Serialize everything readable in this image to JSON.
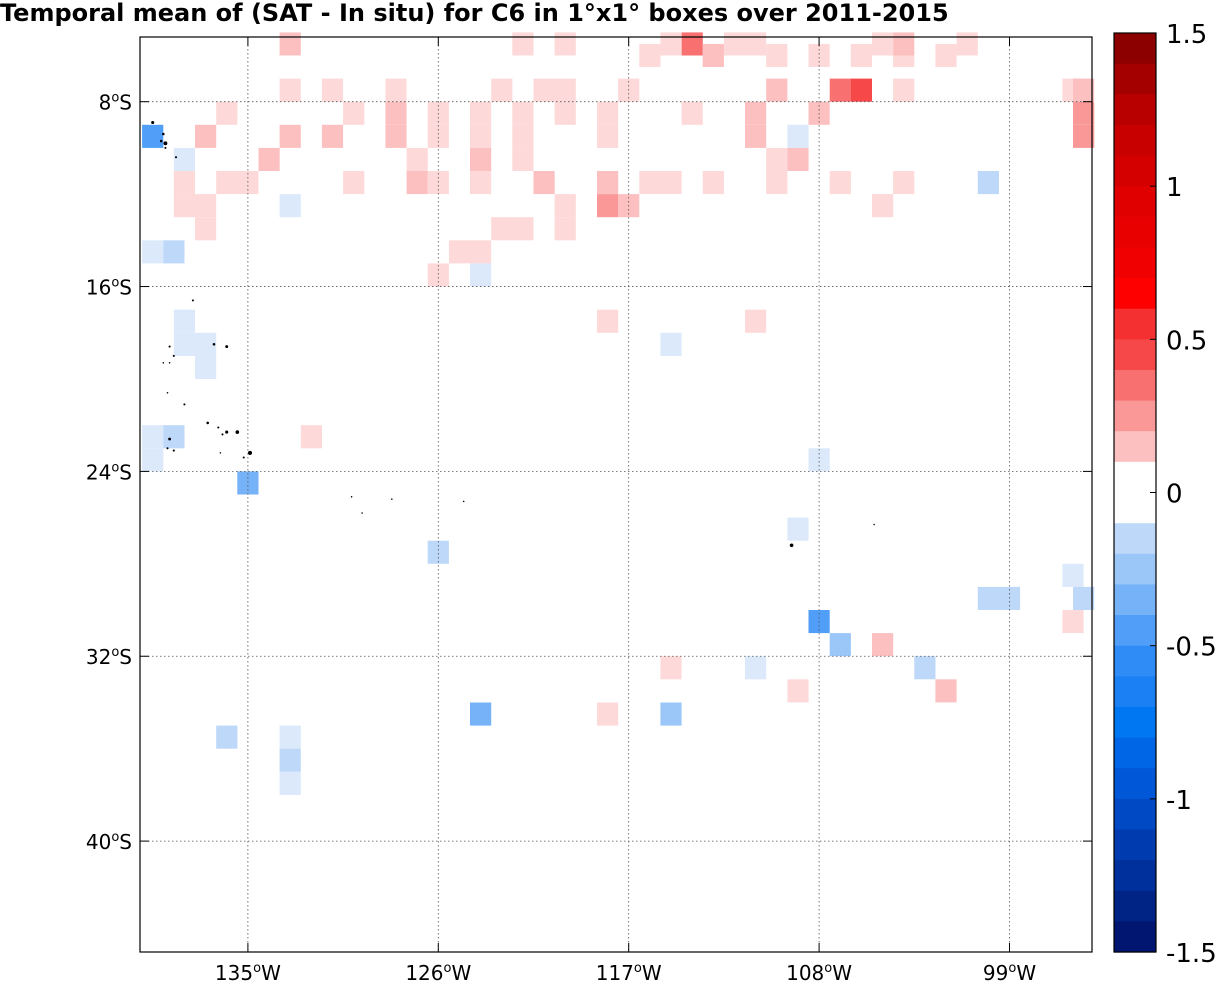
{
  "title": "Temporal mean of (SAT - In situ) for C6 in 1°x1° boxes over 2011-2015",
  "map": {
    "lon_range": [
      -140.1,
      -95.1
    ],
    "lat_range": [
      -44.8,
      -5.2
    ],
    "x_ticks": [
      {
        "lon": -135,
        "label": "135°W"
      },
      {
        "lon": -126,
        "label": "126°W"
      },
      {
        "lon": -117,
        "label": "117°W"
      },
      {
        "lon": -108,
        "label": "108°W"
      },
      {
        "lon": -99,
        "label": "99°W"
      }
    ],
    "y_ticks": [
      {
        "lat": -8,
        "label": "8°S"
      },
      {
        "lat": -16,
        "label": "16°S"
      },
      {
        "lat": -24,
        "label": "24°S"
      },
      {
        "lat": -32,
        "label": "32°S"
      },
      {
        "lat": -40,
        "label": "40°S"
      }
    ],
    "grid": "dotted",
    "land_color": "#000000"
  },
  "colorbar": {
    "range": [
      -1.5,
      1.5
    ],
    "ticks": [
      {
        "value": 1.5,
        "label": "1.5"
      },
      {
        "value": 1,
        "label": "1"
      },
      {
        "value": 0.5,
        "label": "0.5"
      },
      {
        "value": 0,
        "label": "0"
      },
      {
        "value": -0.5,
        "label": "-0.5"
      },
      {
        "value": -1,
        "label": "-1"
      },
      {
        "value": -1.5,
        "label": "-1.5"
      }
    ],
    "levels": 30,
    "colors_positive": [
      "#ffffff",
      "#fdd9d9",
      "#fcc0c0",
      "#fa9898",
      "#f87070",
      "#f64848",
      "#f43030",
      "#ff0000",
      "#f00000",
      "#e80000",
      "#e00000",
      "#d40000",
      "#c80000",
      "#b80000",
      "#a40000",
      "#8c0000"
    ],
    "colors_negative": [
      "#ffffff",
      "#dbe9fb",
      "#bdd8f9",
      "#9bc7f8",
      "#76b2f7",
      "#509ef7",
      "#2f8cf6",
      "#1a80f4",
      "#0077f2",
      "#0066e6",
      "#0058d8",
      "#0049c4",
      "#003cb0",
      "#00309c",
      "#002486",
      "#001670"
    ]
  },
  "chart_data": {
    "type": "heatmap",
    "title": "Temporal mean of (SAT - In situ) for C6 in 1°x1° boxes over 2011-2015",
    "xlabel": "",
    "ylabel": "",
    "x_unit": "longitude (deg E, negative = W)",
    "y_unit": "latitude (deg N, negative = S)",
    "color_range": [
      -1.5,
      1.5
    ],
    "cells": [
      [
        -133,
        -5.5,
        0.25
      ],
      [
        -114,
        -5.5,
        0.45
      ],
      [
        -112,
        -5.5,
        0.15
      ],
      [
        -111,
        -5.5,
        0.15
      ],
      [
        -115,
        -5.5,
        0.1
      ],
      [
        -116,
        -6,
        0.1
      ],
      [
        -113,
        -6,
        0.25
      ],
      [
        -108,
        -6,
        0.1
      ],
      [
        -110,
        -6,
        0.1
      ],
      [
        -106,
        -6,
        0.1
      ],
      [
        -104,
        -6,
        0.1
      ],
      [
        -102,
        -6,
        0.1
      ],
      [
        -122,
        -5.5,
        0.1
      ],
      [
        -120,
        -5.5,
        0.1
      ],
      [
        -101,
        -5.5,
        0.15
      ],
      [
        -104,
        -5.5,
        0.2
      ],
      [
        -105,
        -5.5,
        0.1
      ],
      [
        -133,
        -7.5,
        0.15
      ],
      [
        -131,
        -7.5,
        0.15
      ],
      [
        -128,
        -7.5,
        0.15
      ],
      [
        -117,
        -7.5,
        0.15
      ],
      [
        -110,
        -7.5,
        0.2
      ],
      [
        -107,
        -7.5,
        0.4
      ],
      [
        -106,
        -7.5,
        0.55
      ],
      [
        -104,
        -7.5,
        0.15
      ],
      [
        -96,
        -7.5,
        0.15
      ],
      [
        -95.5,
        -7.5,
        0.25
      ],
      [
        -121,
        -7.5,
        0.15
      ],
      [
        -123,
        -7.5,
        0.1
      ],
      [
        -120,
        -7.5,
        0.1
      ],
      [
        -136,
        -8.5,
        0.15
      ],
      [
        -130,
        -8.5,
        0.15
      ],
      [
        -128,
        -8.5,
        0.2
      ],
      [
        -126,
        -8.5,
        0.15
      ],
      [
        -124,
        -8.5,
        0.1
      ],
      [
        -122,
        -8.5,
        0.1
      ],
      [
        -120,
        -8.5,
        0.1
      ],
      [
        -118,
        -8.5,
        0.15
      ],
      [
        -114,
        -8.5,
        0.15
      ],
      [
        -111,
        -8.5,
        0.25
      ],
      [
        -108,
        -8.5,
        0.2
      ],
      [
        -95.5,
        -8.5,
        0.35
      ],
      [
        -139.5,
        -9.5,
        -0.55
      ],
      [
        -137,
        -9.5,
        0.2
      ],
      [
        -133,
        -9.5,
        0.2
      ],
      [
        -131,
        -9.5,
        0.25
      ],
      [
        -128,
        -9.5,
        0.2
      ],
      [
        -126,
        -9.5,
        0.15
      ],
      [
        -124,
        -9.5,
        0.15
      ],
      [
        -122,
        -9.5,
        0.15
      ],
      [
        -118,
        -9.5,
        0.15
      ],
      [
        -111,
        -9.5,
        0.2
      ],
      [
        -109,
        -9.5,
        -0.15
      ],
      [
        -95.5,
        -9.5,
        0.35
      ],
      [
        -138,
        -10.5,
        -0.15
      ],
      [
        -134,
        -10.5,
        0.25
      ],
      [
        -127,
        -10.5,
        0.15
      ],
      [
        -124,
        -10.5,
        0.2
      ],
      [
        -122,
        -10.5,
        0.15
      ],
      [
        -110,
        -10.5,
        0.15
      ],
      [
        -109,
        -10.5,
        0.2
      ],
      [
        -138,
        -11.5,
        0.15
      ],
      [
        -136,
        -11.5,
        0.15
      ],
      [
        -135,
        -11.5,
        0.15
      ],
      [
        -130,
        -11.5,
        0.1
      ],
      [
        -127,
        -11.5,
        0.25
      ],
      [
        -126,
        -11.5,
        0.15
      ],
      [
        -124,
        -11.5,
        0.15
      ],
      [
        -121,
        -11.5,
        0.25
      ],
      [
        -118,
        -11.5,
        0.2
      ],
      [
        -116,
        -11.5,
        0.15
      ],
      [
        -115,
        -11.5,
        0.15
      ],
      [
        -113,
        -11.5,
        0.15
      ],
      [
        -110,
        -11.5,
        0.15
      ],
      [
        -107,
        -11.5,
        0.15
      ],
      [
        -104,
        -11.5,
        0.15
      ],
      [
        -100,
        -11.5,
        -0.2
      ],
      [
        -138,
        -12.5,
        0.15
      ],
      [
        -137,
        -12.5,
        0.15
      ],
      [
        -133,
        -12.5,
        -0.15
      ],
      [
        -120,
        -12.5,
        0.1
      ],
      [
        -118,
        -12.5,
        0.35
      ],
      [
        -117,
        -12.5,
        0.2
      ],
      [
        -105,
        -12.5,
        0.15
      ],
      [
        -137,
        -13.5,
        0.15
      ],
      [
        -123,
        -13.5,
        0.15
      ],
      [
        -122,
        -13.5,
        0.1
      ],
      [
        -120,
        -13.5,
        0.15
      ],
      [
        -139.5,
        -14.5,
        -0.15
      ],
      [
        -138.5,
        -14.5,
        -0.2
      ],
      [
        -125,
        -14.5,
        0.15
      ],
      [
        -124,
        -14.5,
        0.15
      ],
      [
        -126,
        -15.5,
        0.15
      ],
      [
        -124,
        -15.5,
        -0.15
      ],
      [
        -138,
        -17.5,
        -0.15
      ],
      [
        -118,
        -17.5,
        0.15
      ],
      [
        -111,
        -17.5,
        0.15
      ],
      [
        -138,
        -18.5,
        -0.15
      ],
      [
        -137,
        -18.5,
        -0.15
      ],
      [
        -115,
        -18.5,
        -0.15
      ],
      [
        -137,
        -19.5,
        -0.15
      ],
      [
        -139.5,
        -22.5,
        -0.15
      ],
      [
        -138.5,
        -22.5,
        -0.2
      ],
      [
        -132,
        -22.5,
        0.15
      ],
      [
        -139.5,
        -23.5,
        -0.15
      ],
      [
        -108,
        -23.5,
        -0.15
      ],
      [
        -135,
        -24.5,
        -0.45
      ],
      [
        -109,
        -26.5,
        -0.15
      ],
      [
        -126,
        -27.5,
        -0.25
      ],
      [
        -96,
        -28.5,
        -0.15
      ],
      [
        -100,
        -29.5,
        -0.2
      ],
      [
        -99,
        -29.5,
        -0.2
      ],
      [
        -95.5,
        -29.5,
        -0.25
      ],
      [
        -108,
        -30.5,
        -0.6
      ],
      [
        -96,
        -30.5,
        0.15
      ],
      [
        -107,
        -31.5,
        -0.35
      ],
      [
        -105,
        -31.5,
        0.25
      ],
      [
        -111,
        -32.5,
        -0.15
      ],
      [
        -115,
        -32.5,
        0.15
      ],
      [
        -103,
        -32.5,
        -0.2
      ],
      [
        -109,
        -33.5,
        0.15
      ],
      [
        -102,
        -33.5,
        0.3
      ],
      [
        -124,
        -34.5,
        -0.45
      ],
      [
        -115,
        -34.5,
        -0.35
      ],
      [
        -118,
        -34.5,
        0.15
      ],
      [
        -136,
        -35.5,
        -0.25
      ],
      [
        -133,
        -35.5,
        -0.15
      ],
      [
        -133,
        -36.5,
        -0.2
      ],
      [
        -133,
        -37.5,
        -0.15
      ]
    ]
  }
}
